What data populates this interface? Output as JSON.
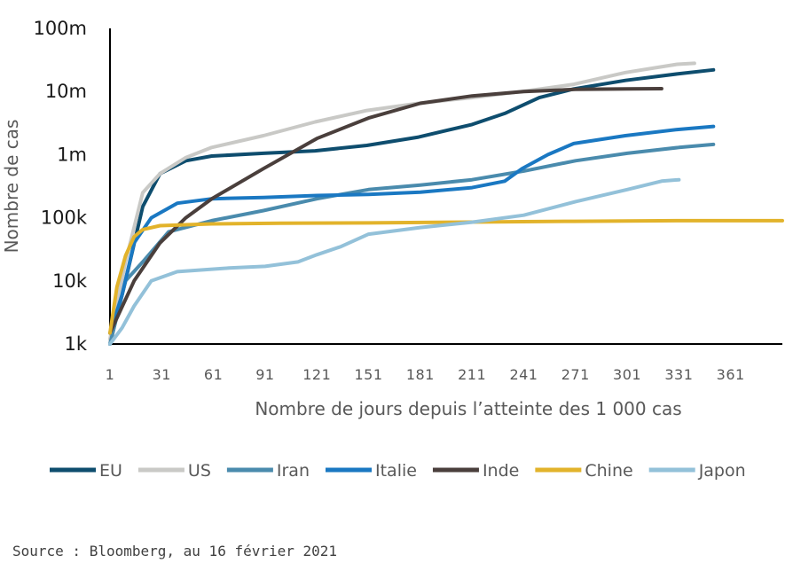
{
  "source": "Source : Bloomberg, au 16 février 2021",
  "chart_data": {
    "type": "line",
    "xlabel": "Nombre de jours depuis l’atteinte des 1 000 cas",
    "ylabel": "Nombre de cas",
    "y_scale": "log",
    "ylim": [
      1000,
      100000000
    ],
    "xlim": [
      1,
      391
    ],
    "x_ticks": [
      1,
      31,
      61,
      91,
      121,
      151,
      181,
      211,
      241,
      271,
      301,
      331,
      361
    ],
    "y_ticks": [
      {
        "value": 1000,
        "label": "1k"
      },
      {
        "value": 10000,
        "label": "10k"
      },
      {
        "value": 100000,
        "label": "100k"
      },
      {
        "value": 1000000,
        "label": "1m"
      },
      {
        "value": 10000000,
        "label": "10m"
      },
      {
        "value": 100000000,
        "label": "100m"
      }
    ],
    "legend_position": "bottom",
    "series": [
      {
        "name": "EU",
        "color": "#0e4d6e",
        "points": [
          [
            1,
            1000
          ],
          [
            10,
            10000
          ],
          [
            20,
            150000
          ],
          [
            30,
            500000
          ],
          [
            45,
            800000
          ],
          [
            60,
            950000
          ],
          [
            90,
            1050000
          ],
          [
            120,
            1150000
          ],
          [
            150,
            1400000
          ],
          [
            180,
            1900000
          ],
          [
            211,
            3000000
          ],
          [
            230,
            4500000
          ],
          [
            250,
            8000000
          ],
          [
            270,
            11000000
          ],
          [
            300,
            15000000
          ],
          [
            330,
            19000000
          ],
          [
            351,
            22000000
          ]
        ]
      },
      {
        "name": "US",
        "color": "#c9c9c6",
        "points": [
          [
            1,
            1200
          ],
          [
            10,
            20000
          ],
          [
            20,
            250000
          ],
          [
            30,
            500000
          ],
          [
            45,
            900000
          ],
          [
            60,
            1300000
          ],
          [
            90,
            2000000
          ],
          [
            120,
            3300000
          ],
          [
            150,
            5000000
          ],
          [
            180,
            6500000
          ],
          [
            211,
            8000000
          ],
          [
            240,
            10000000
          ],
          [
            270,
            13000000
          ],
          [
            300,
            20000000
          ],
          [
            330,
            27000000
          ],
          [
            340,
            28000000
          ]
        ]
      },
      {
        "name": "Iran",
        "color": "#4a8bad",
        "points": [
          [
            1,
            1000
          ],
          [
            10,
            10000
          ],
          [
            20,
            20000
          ],
          [
            35,
            60000
          ],
          [
            60,
            90000
          ],
          [
            90,
            130000
          ],
          [
            121,
            200000
          ],
          [
            151,
            280000
          ],
          [
            181,
            330000
          ],
          [
            211,
            400000
          ],
          [
            241,
            550000
          ],
          [
            271,
            800000
          ],
          [
            301,
            1050000
          ],
          [
            331,
            1300000
          ],
          [
            351,
            1450000
          ]
        ]
      },
      {
        "name": "Italie",
        "color": "#1a78c2",
        "points": [
          [
            1,
            1500
          ],
          [
            8,
            6000
          ],
          [
            15,
            40000
          ],
          [
            25,
            100000
          ],
          [
            40,
            170000
          ],
          [
            60,
            200000
          ],
          [
            90,
            210000
          ],
          [
            121,
            225000
          ],
          [
            151,
            235000
          ],
          [
            181,
            255000
          ],
          [
            211,
            300000
          ],
          [
            230,
            380000
          ],
          [
            240,
            600000
          ],
          [
            255,
            1000000
          ],
          [
            270,
            1500000
          ],
          [
            300,
            2000000
          ],
          [
            330,
            2500000
          ],
          [
            351,
            2800000
          ]
        ]
      },
      {
        "name": "Inde",
        "color": "#4a3f3c",
        "points": [
          [
            1,
            1500
          ],
          [
            15,
            10000
          ],
          [
            30,
            40000
          ],
          [
            45,
            100000
          ],
          [
            60,
            200000
          ],
          [
            90,
            600000
          ],
          [
            121,
            1800000
          ],
          [
            151,
            3800000
          ],
          [
            181,
            6500000
          ],
          [
            211,
            8500000
          ],
          [
            241,
            10000000
          ],
          [
            271,
            10800000
          ],
          [
            301,
            11000000
          ],
          [
            321,
            11100000
          ]
        ]
      },
      {
        "name": "Chine",
        "color": "#e2b32b",
        "points": [
          [
            1,
            1500
          ],
          [
            5,
            8000
          ],
          [
            10,
            25000
          ],
          [
            15,
            50000
          ],
          [
            20,
            65000
          ],
          [
            30,
            75000
          ],
          [
            60,
            80000
          ],
          [
            100,
            82000
          ],
          [
            151,
            83000
          ],
          [
            200,
            85000
          ],
          [
            270,
            88000
          ],
          [
            330,
            90000
          ],
          [
            391,
            90000
          ]
        ]
      },
      {
        "name": "Japon",
        "color": "#93c1d9",
        "points": [
          [
            1,
            1000
          ],
          [
            8,
            1800
          ],
          [
            15,
            4000
          ],
          [
            25,
            10000
          ],
          [
            40,
            14000
          ],
          [
            70,
            16000
          ],
          [
            91,
            17000
          ],
          [
            110,
            20000
          ],
          [
            121,
            26000
          ],
          [
            135,
            35000
          ],
          [
            151,
            55000
          ],
          [
            181,
            70000
          ],
          [
            211,
            85000
          ],
          [
            241,
            110000
          ],
          [
            271,
            180000
          ],
          [
            301,
            280000
          ],
          [
            321,
            380000
          ],
          [
            331,
            400000
          ]
        ]
      }
    ]
  }
}
